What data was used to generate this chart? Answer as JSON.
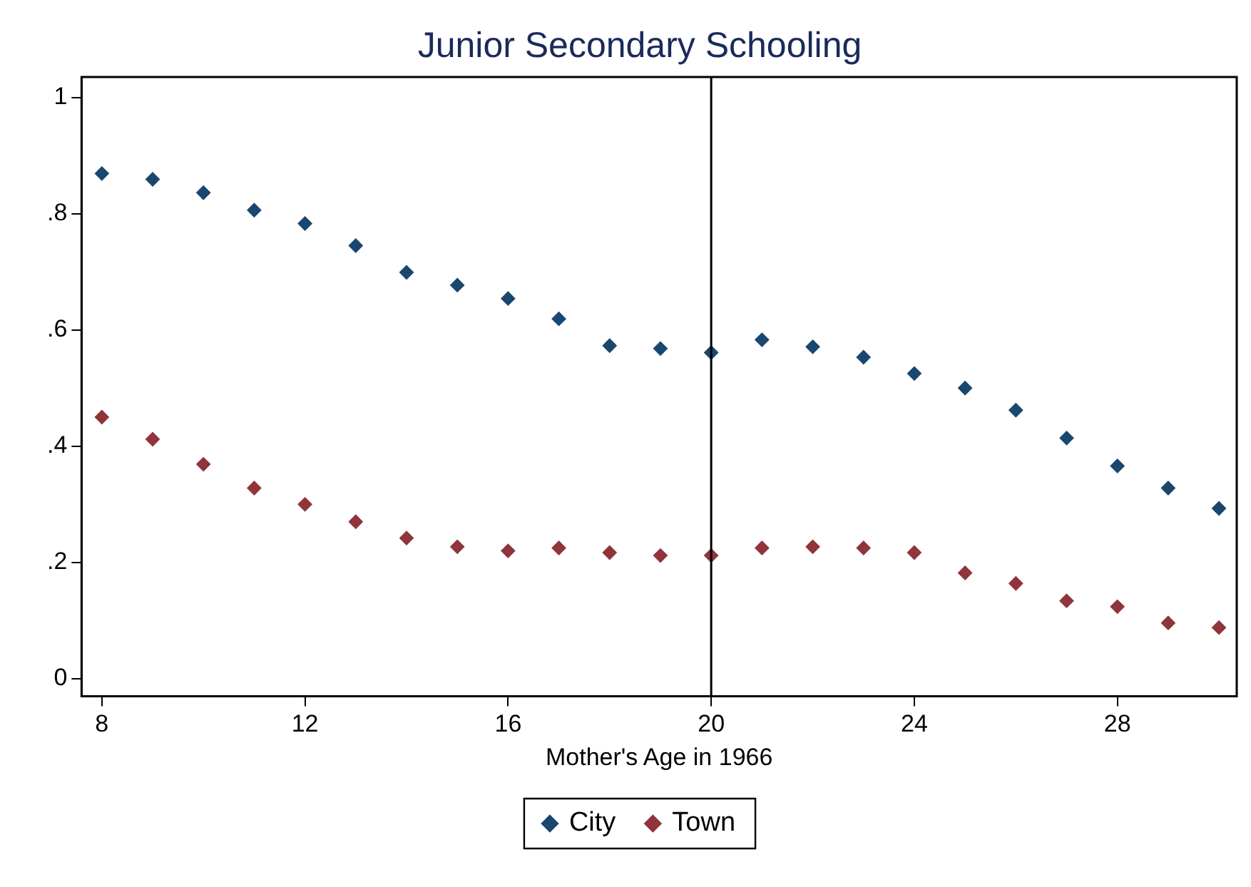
{
  "chart_data": {
    "type": "scatter",
    "title": "Junior Secondary Schooling",
    "xlabel": "Mother's Age in 1966",
    "x": [
      8,
      9,
      10,
      11,
      12,
      13,
      14,
      15,
      16,
      17,
      18,
      19,
      20,
      21,
      22,
      23,
      24,
      25,
      26,
      27,
      28,
      29,
      30
    ],
    "series": [
      {
        "name": "City",
        "color": "#1a476f",
        "values": [
          0.869,
          0.859,
          0.836,
          0.806,
          0.783,
          0.745,
          0.699,
          0.677,
          0.654,
          0.619,
          0.573,
          0.568,
          0.561,
          0.583,
          0.571,
          0.553,
          0.525,
          0.5,
          0.462,
          0.414,
          0.366,
          0.328,
          0.293
        ]
      },
      {
        "name": "Town",
        "color": "#90353b",
        "values": [
          0.45,
          0.412,
          0.369,
          0.328,
          0.3,
          0.27,
          0.242,
          0.227,
          0.22,
          0.225,
          0.217,
          0.212,
          0.212,
          0.225,
          0.227,
          0.225,
          0.217,
          0.182,
          0.164,
          0.134,
          0.124,
          0.096,
          0.088
        ]
      }
    ],
    "xlim": [
      7.6,
      30.35
    ],
    "xticks": [
      8,
      12,
      16,
      20,
      24,
      28
    ],
    "ylim": [
      -0.03,
      1.035
    ],
    "yticks": [
      0,
      {
        "value": 0.2,
        "label": ".2"
      },
      {
        "value": 0.4,
        "label": ".4"
      },
      {
        "value": 0.6,
        "label": ".6"
      },
      {
        "value": 0.8,
        "label": ".8"
      },
      1
    ],
    "ref_lines": [
      {
        "axis": "x",
        "value": 20,
        "color": "#000000"
      }
    ],
    "grid": false,
    "legend": "bottom",
    "marker": "diamond"
  }
}
